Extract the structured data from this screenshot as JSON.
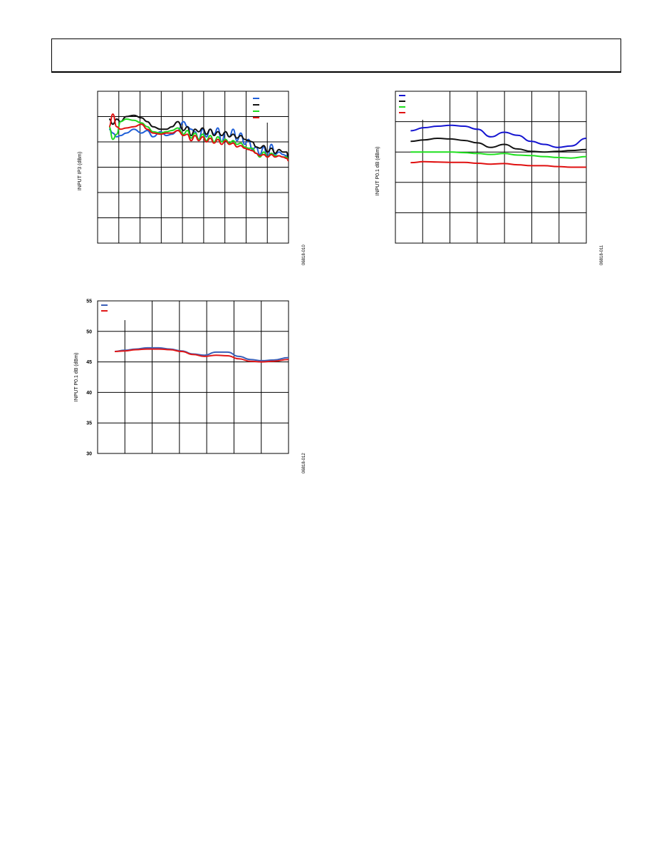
{
  "page": {
    "figure_ids": [
      "06818-010",
      "06818-011",
      "06818-012"
    ]
  },
  "chart_data": [
    {
      "id": "ip3",
      "type": "line",
      "title": "",
      "xlabel": "",
      "ylabel": "INPUT IP3 (dBm)",
      "xlim": [
        0,
        100
      ],
      "ylim": [
        0,
        6
      ],
      "y_ticks": [],
      "grid": true,
      "legend_position": "top-right",
      "colors": [
        "#1f5fd8",
        "#111111",
        "#1fd81f",
        "#e01010"
      ],
      "x": [
        6,
        8,
        10,
        12,
        15,
        19,
        23,
        26,
        29,
        33,
        36,
        39,
        42,
        45,
        47,
        49,
        51,
        53,
        55,
        57,
        59,
        61,
        63,
        65,
        67,
        69,
        71,
        73,
        75,
        77,
        79,
        81,
        83,
        85,
        87,
        89,
        91,
        93,
        95,
        97,
        99,
        100
      ],
      "series": [
        {
          "values": [
            4.5,
            4.35,
            4.2,
            4.25,
            4.35,
            4.5,
            4.35,
            4.45,
            4.2,
            4.4,
            4.25,
            4.3,
            4.45,
            4.8,
            4.6,
            4.5,
            4.4,
            4.1,
            4.5,
            4.2,
            4.5,
            4.3,
            4.55,
            4.0,
            4.4,
            4.2,
            4.5,
            4.05,
            4.35,
            3.9,
            4.1,
            3.7,
            3.8,
            3.5,
            3.8,
            3.4,
            3.9,
            3.5,
            3.6,
            3.5,
            3.45,
            3.3
          ]
        },
        {
          "values": [
            4.9,
            4.7,
            4.9,
            4.8,
            5.0,
            5.05,
            4.95,
            4.8,
            4.6,
            4.5,
            4.5,
            4.6,
            4.8,
            4.45,
            4.6,
            4.25,
            4.5,
            4.4,
            4.55,
            4.3,
            4.5,
            4.25,
            4.4,
            4.25,
            4.4,
            4.2,
            4.3,
            4.15,
            4.25,
            4.1,
            4.05,
            4.0,
            3.8,
            3.75,
            3.85,
            3.6,
            3.75,
            3.55,
            3.7,
            3.6,
            3.6,
            3.35
          ]
        },
        {
          "values": [
            4.6,
            4.1,
            4.3,
            4.8,
            4.9,
            4.85,
            4.75,
            4.6,
            4.4,
            4.35,
            4.4,
            4.45,
            4.55,
            4.3,
            4.45,
            4.15,
            4.35,
            4.1,
            4.3,
            4.05,
            4.25,
            4.0,
            4.2,
            4.0,
            4.1,
            3.95,
            4.05,
            3.9,
            3.95,
            3.8,
            3.75,
            3.75,
            3.55,
            3.4,
            3.6,
            3.4,
            3.55,
            3.45,
            3.45,
            3.4,
            3.4,
            3.25
          ]
        },
        {
          "values": [
            4.6,
            5.1,
            4.6,
            4.5,
            4.55,
            4.6,
            4.7,
            4.5,
            4.35,
            4.3,
            4.35,
            4.35,
            4.45,
            4.25,
            4.3,
            4.05,
            4.25,
            4.05,
            4.2,
            4.0,
            4.15,
            3.95,
            4.1,
            3.9,
            4.05,
            3.9,
            3.95,
            3.8,
            3.85,
            3.75,
            3.7,
            3.65,
            3.55,
            3.45,
            3.5,
            3.4,
            3.5,
            3.4,
            3.45,
            3.4,
            3.35,
            3.25
          ]
        }
      ]
    },
    {
      "id": "p01db",
      "type": "line",
      "title": "",
      "xlabel": "",
      "ylabel": "INPUT P0.1 dB (dBm)",
      "xlim": [
        0,
        100
      ],
      "ylim": [
        0,
        5
      ],
      "y_ticks": [],
      "grid": true,
      "legend_position": "top-left",
      "colors": [
        "#1414d0",
        "#111111",
        "#1fe01f",
        "#e01010"
      ],
      "x": [
        8,
        15,
        22,
        29,
        36,
        43,
        50,
        57,
        64,
        71,
        78,
        85,
        92,
        100
      ],
      "series": [
        {
          "values": [
            3.7,
            3.8,
            3.85,
            3.88,
            3.85,
            3.75,
            3.5,
            3.65,
            3.55,
            3.35,
            3.25,
            3.15,
            3.2,
            3.45
          ]
        },
        {
          "values": [
            3.35,
            3.4,
            3.45,
            3.43,
            3.38,
            3.3,
            3.15,
            3.25,
            3.1,
            3.02,
            3.0,
            3.02,
            3.05,
            3.08
          ]
        },
        {
          "values": [
            3.0,
            3.0,
            3.0,
            3.0,
            2.98,
            2.95,
            2.92,
            2.95,
            2.9,
            2.88,
            2.85,
            2.82,
            2.8,
            2.85
          ]
        },
        {
          "values": [
            2.65,
            2.68,
            2.67,
            2.66,
            2.66,
            2.63,
            2.6,
            2.62,
            2.58,
            2.55,
            2.55,
            2.52,
            2.5,
            2.5
          ]
        }
      ]
    },
    {
      "id": "p01db_2",
      "type": "line",
      "title": "",
      "xlabel": "",
      "ylabel": "INPUT P0.1 dB (dBm)",
      "xlim": [
        0,
        100
      ],
      "ylim": [
        30,
        55
      ],
      "y_ticks": [
        "30",
        "35",
        "40",
        "45",
        "50",
        "55"
      ],
      "grid": true,
      "legend_position": "top-left",
      "colors": [
        "#3a5fb8",
        "#e01818"
      ],
      "x": [
        9,
        14,
        20,
        26,
        32,
        38,
        44,
        50,
        56,
        62,
        68,
        74,
        80,
        86,
        92,
        100
      ],
      "series": [
        {
          "values": [
            46.7,
            46.9,
            47.1,
            47.3,
            47.3,
            47.1,
            46.8,
            46.3,
            46.1,
            46.6,
            46.6,
            45.9,
            45.4,
            45.2,
            45.3,
            45.7
          ]
        },
        {
          "values": [
            46.7,
            46.8,
            47.0,
            47.1,
            47.1,
            47.0,
            46.7,
            46.2,
            45.9,
            46.1,
            46.0,
            45.5,
            45.1,
            45.0,
            45.1,
            45.4
          ]
        }
      ]
    }
  ]
}
